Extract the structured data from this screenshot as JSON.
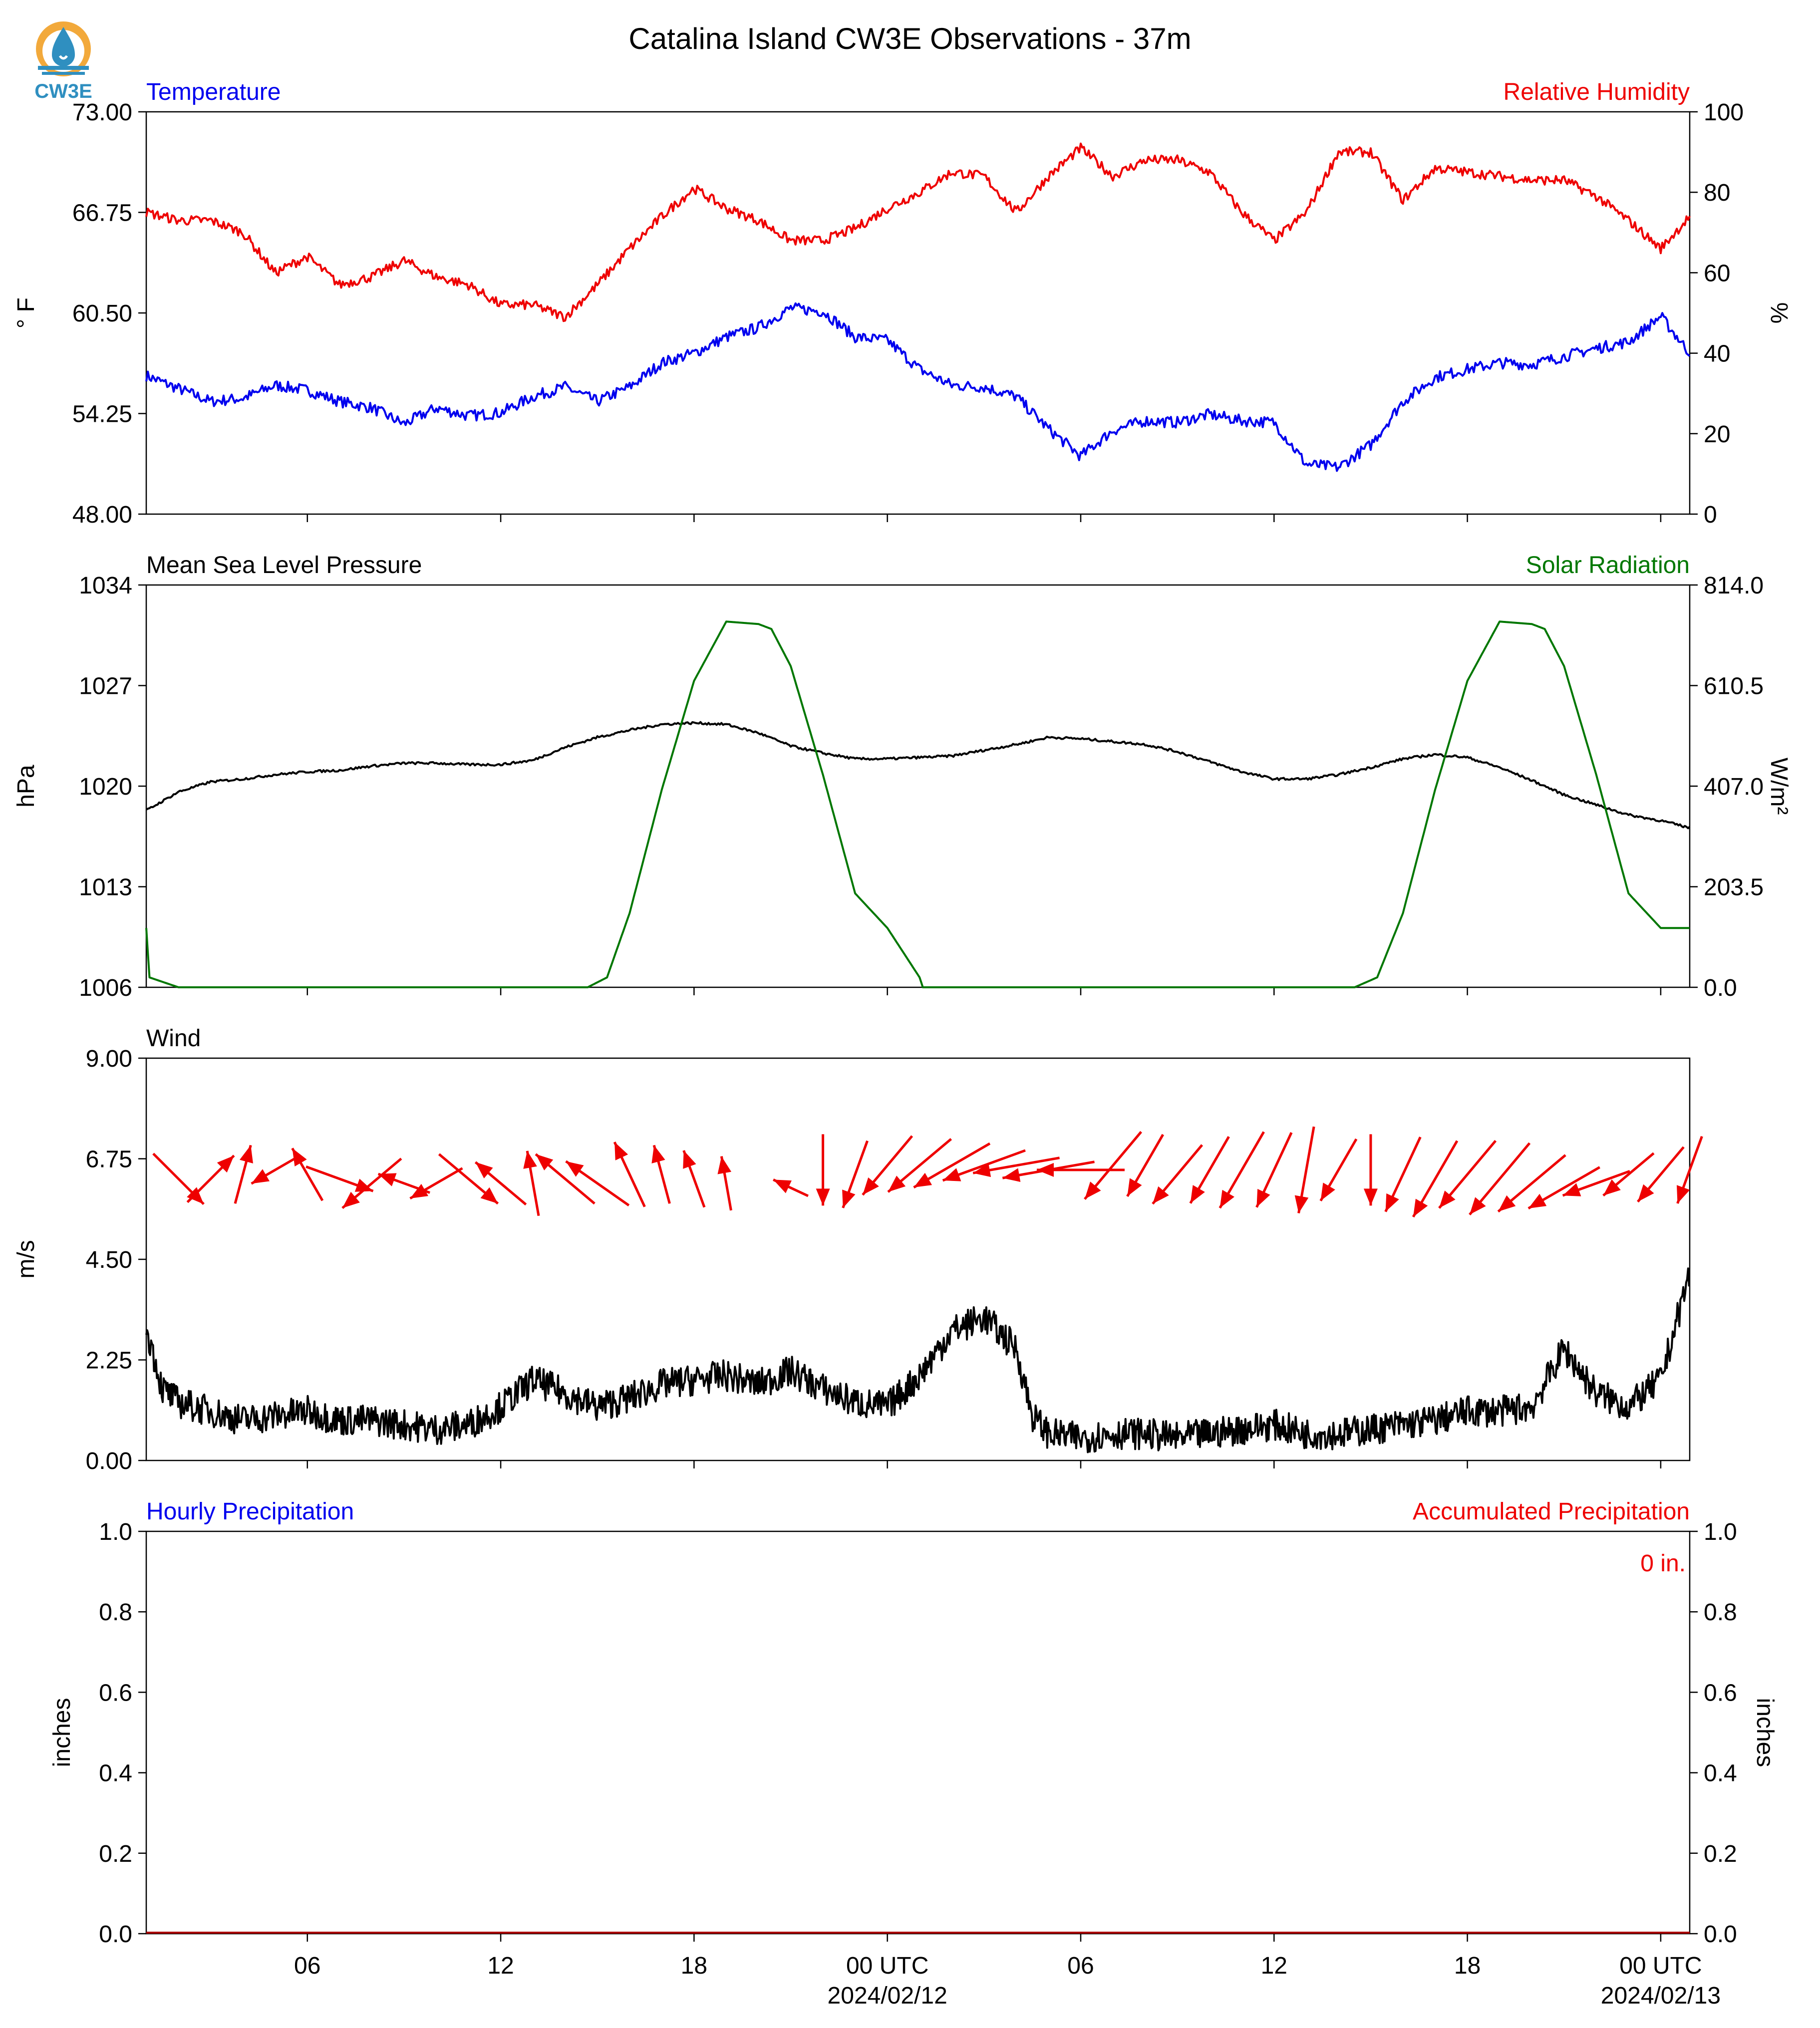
{
  "title": "Catalina Island CW3E Observations - 37m",
  "logo": {
    "text": "CW3E",
    "colors": {
      "ring": "#f2a93b",
      "drop": "#2f8fc0",
      "text": "#2f8fc0"
    }
  },
  "colors": {
    "temperature": "#0000ee",
    "humidity": "#ee0000",
    "pressure": "#000000",
    "solar": "#007700",
    "wind_speed": "#000000",
    "wind_arrows": "#ee0000",
    "hourly_label": "#0000ee",
    "accum_label": "#ee0000"
  },
  "x_axis": {
    "range_hours": [
      -23.0,
      24.9
    ],
    "ticks": [
      {
        "hour": -18,
        "label": "06",
        "sublabel": ""
      },
      {
        "hour": -12,
        "label": "12",
        "sublabel": ""
      },
      {
        "hour": -6,
        "label": "18",
        "sublabel": ""
      },
      {
        "hour": 0,
        "label": "00 UTC",
        "sublabel": "2024/02/12"
      },
      {
        "hour": 6,
        "label": "06",
        "sublabel": ""
      },
      {
        "hour": 12,
        "label": "12",
        "sublabel": ""
      },
      {
        "hour": 18,
        "label": "18",
        "sublabel": ""
      },
      {
        "hour": 24,
        "label": "00 UTC",
        "sublabel": "2024/02/13"
      }
    ]
  },
  "chart_data": [
    {
      "type": "line",
      "left_title": "Temperature",
      "right_title": "Relative Humidity",
      "left_ylabel": "° F",
      "right_ylabel": "%",
      "left_ylim": [
        48.0,
        73.0
      ],
      "right_ylim": [
        0,
        100
      ],
      "left_ticks": [
        "48.00",
        "54.25",
        "60.50",
        "66.75",
        "73.00"
      ],
      "right_ticks": [
        "0",
        "20",
        "40",
        "60",
        "80",
        "100"
      ],
      "series": [
        {
          "key": "temperature",
          "axis": "left",
          "x": [
            -23,
            -22,
            -21,
            -20,
            -19,
            -18,
            -17,
            -16,
            -15,
            -14,
            -13,
            -12,
            -11,
            -10,
            -9,
            -8,
            -7,
            -6,
            -5,
            -4,
            -3,
            -2,
            -1,
            0,
            1,
            2,
            3,
            4,
            5,
            6,
            7,
            8,
            9,
            10,
            11,
            12,
            13,
            14,
            15,
            16,
            17,
            18,
            19,
            20,
            21,
            22,
            23,
            24,
            24.9
          ],
          "y": [
            56.6,
            55.8,
            55.0,
            55.2,
            56.0,
            55.7,
            55.0,
            54.6,
            53.6,
            54.6,
            54.1,
            54.3,
            55.3,
            55.9,
            55.0,
            55.9,
            57.4,
            58.0,
            59.0,
            59.6,
            60.8,
            60.6,
            59.0,
            58.8,
            57.0,
            56.0,
            55.9,
            55.3,
            53.3,
            51.6,
            53.2,
            53.8,
            53.7,
            54.2,
            53.8,
            53.7,
            51.1,
            50.9,
            52.3,
            55.0,
            56.5,
            57.0,
            57.4,
            57.3,
            57.8,
            58.3,
            58.7,
            60.3,
            58.0
          ]
        },
        {
          "key": "humidity",
          "axis": "right",
          "x": [
            -23,
            -22,
            -21,
            -20,
            -19,
            -18,
            -17,
            -16,
            -15,
            -14,
            -13,
            -12,
            -11,
            -10,
            -9,
            -8,
            -7,
            -6,
            -5,
            -4,
            -3,
            -2,
            -1,
            0,
            1,
            2,
            3,
            4,
            5,
            6,
            7,
            8,
            9,
            10,
            11,
            12,
            13,
            14,
            15,
            16,
            17,
            18,
            19,
            20,
            21,
            22,
            23,
            24,
            24.9
          ],
          "y": [
            75,
            73,
            73,
            70,
            60,
            64,
            57,
            59,
            63,
            59,
            57,
            52,
            52,
            49,
            57,
            66,
            74,
            81,
            76,
            73,
            68,
            68,
            71,
            76,
            80,
            85,
            84,
            75,
            84,
            91,
            84,
            88,
            88,
            85,
            75,
            68,
            75,
            90,
            90,
            78,
            86,
            85,
            84,
            83,
            83,
            79,
            73,
            66,
            74
          ]
        }
      ]
    },
    {
      "type": "line",
      "left_title": "Mean Sea Level Pressure",
      "right_title": "Solar Radiation",
      "left_ylabel": "hPa",
      "right_ylabel": "W/m²",
      "left_ylim": [
        1006,
        1034
      ],
      "right_ylim": [
        0.0,
        814.0
      ],
      "left_ticks": [
        "1006",
        "1013",
        "1020",
        "1027",
        "1034"
      ],
      "right_ticks": [
        "0.0",
        "203.5",
        "407.0",
        "610.5",
        "814.0"
      ],
      "series": [
        {
          "key": "pressure",
          "axis": "left",
          "x": [
            -23,
            -22,
            -21,
            -20,
            -19,
            -18,
            -17,
            -16,
            -15,
            -14,
            -13,
            -12,
            -11,
            -10,
            -9,
            -8,
            -7,
            -6,
            -5,
            -4,
            -3,
            -2,
            -1,
            0,
            1,
            2,
            3,
            4,
            5,
            6,
            7,
            8,
            9,
            10,
            11,
            12,
            13,
            14,
            15,
            16,
            17,
            18,
            19,
            20,
            21,
            22,
            23,
            24,
            24.9
          ],
          "y": [
            1018.3,
            1019.6,
            1020.3,
            1020.5,
            1020.8,
            1021.0,
            1021.1,
            1021.4,
            1021.6,
            1021.6,
            1021.5,
            1021.5,
            1021.8,
            1022.7,
            1023.4,
            1023.9,
            1024.3,
            1024.4,
            1024.3,
            1023.7,
            1022.8,
            1022.3,
            1021.9,
            1021.9,
            1022.0,
            1022.1,
            1022.5,
            1022.9,
            1023.4,
            1023.3,
            1023.1,
            1022.9,
            1022.4,
            1021.7,
            1021.0,
            1020.5,
            1020.5,
            1020.8,
            1021.3,
            1021.9,
            1022.2,
            1022.0,
            1021.3,
            1020.4,
            1019.4,
            1018.7,
            1018.0,
            1017.6,
            1017.1
          ]
        },
        {
          "key": "solar",
          "axis": "right",
          "x": [
            -23,
            -22.9,
            -22,
            -20,
            -18,
            -16,
            -14,
            -9.3,
            -8.7,
            -8.0,
            -7.0,
            -6.0,
            -5.0,
            -4.0,
            -3.6,
            -3.0,
            -2.0,
            -1.0,
            0,
            1.0,
            1.1,
            2,
            4,
            6,
            8,
            10,
            12,
            14.5,
            15.2,
            16.0,
            17.0,
            18.0,
            19.0,
            20.0,
            20.4,
            21.0,
            22.0,
            23.0,
            24.0,
            24.9
          ],
          "y": [
            120,
            20,
            0,
            0,
            0,
            0,
            0,
            0,
            20,
            150,
            400,
            620,
            740,
            735,
            725,
            650,
            430,
            190,
            120,
            20,
            0,
            0,
            0,
            0,
            0,
            0,
            0,
            0,
            20,
            150,
            400,
            620,
            740,
            735,
            725,
            650,
            430,
            190,
            120,
            120
          ]
        },
        {
          "key": "wind_speed_placeholder",
          "axis": "none",
          "x": [],
          "y": []
        }
      ]
    },
    {
      "type": "line",
      "left_title": "Wind",
      "left_ylabel": "m/s",
      "left_ylim": [
        0.0,
        9.0
      ],
      "left_ticks": [
        "0.00",
        "2.25",
        "4.50",
        "6.75",
        "9.00"
      ],
      "series": [
        {
          "key": "wind_speed",
          "axis": "left",
          "x": [
            -23,
            -22.5,
            -22,
            -21,
            -20,
            -19,
            -18,
            -17,
            -16,
            -15,
            -14,
            -13,
            -12,
            -11,
            -10,
            -9,
            -8,
            -7,
            -6,
            -5,
            -4,
            -3,
            -2,
            -1,
            0,
            1,
            2,
            3,
            4,
            4.5,
            5,
            6,
            7,
            8,
            9,
            10,
            11,
            12,
            13,
            14,
            15,
            16,
            17,
            18,
            19,
            20,
            21,
            22,
            23,
            24,
            24.9
          ],
          "y": [
            3.0,
            1.6,
            1.3,
            1.1,
            0.9,
            1.0,
            1.1,
            0.9,
            0.9,
            0.8,
            0.7,
            0.8,
            1.2,
            1.8,
            1.5,
            1.2,
            1.4,
            1.7,
            1.8,
            1.9,
            1.7,
            2.0,
            1.6,
            1.3,
            1.2,
            1.9,
            2.9,
            3.2,
            2.5,
            1.0,
            0.6,
            0.5,
            0.6,
            0.6,
            0.5,
            0.6,
            0.7,
            0.8,
            0.6,
            0.6,
            0.7,
            0.8,
            0.9,
            1.1,
            1.1,
            1.2,
            2.5,
            1.5,
            1.2,
            1.8,
            4.2
          ]
        },
        {
          "key": "wind_arrows",
          "axis": "left",
          "x": [
            -22,
            -21,
            -20,
            -19,
            -18,
            -17,
            -16,
            -15,
            -14,
            -13,
            -12,
            -11,
            -10,
            -9,
            -8,
            -7,
            -6,
            -5,
            -3,
            -2,
            -1,
            0,
            1,
            2,
            3,
            4,
            5,
            6,
            7,
            8,
            9,
            10,
            11,
            12,
            13,
            14,
            15,
            16,
            17,
            18,
            19,
            20,
            21,
            22,
            23,
            24,
            24.9
          ],
          "y": [
            6.3,
            6.3,
            6.4,
            6.5,
            6.4,
            6.3,
            6.2,
            6.2,
            6.2,
            6.3,
            6.2,
            6.2,
            6.3,
            6.2,
            6.4,
            6.4,
            6.3,
            6.2,
            6.1,
            6.5,
            6.4,
            6.6,
            6.6,
            6.6,
            6.6,
            6.6,
            6.5,
            6.5,
            6.6,
            6.6,
            6.4,
            6.5,
            6.5,
            6.5,
            6.5,
            6.5,
            6.5,
            6.4,
            6.3,
            6.4,
            6.3,
            6.2,
            6.1,
            6.2,
            6.4,
            6.4,
            6.5
          ],
          "dir": [
            -45,
            45,
            75,
            -150,
            120,
            -20,
            -140,
            -200,
            -150,
            -40,
            -220,
            -260,
            -220,
            -215,
            -245,
            -255,
            -250,
            -260,
            -205,
            -90,
            -110,
            -130,
            -140,
            -150,
            -160,
            -170,
            -170,
            -180,
            -130,
            -120,
            -130,
            -120,
            -120,
            -115,
            -100,
            -120,
            -90,
            -115,
            -120,
            -130,
            -130,
            -140,
            -150,
            -160,
            -140,
            -130,
            -110
          ],
          "len": [
            1.3,
            1.2,
            1.1,
            1.0,
            1.1,
            1.3,
            1.4,
            1.0,
            1.1,
            1.4,
            1.2,
            1.2,
            1.4,
            1.4,
            1.3,
            1.1,
            1.1,
            1.0,
            0.7,
            1.3,
            1.3,
            1.4,
            1.5,
            1.6,
            1.6,
            1.6,
            1.7,
            1.6,
            1.6,
            1.3,
            1.4,
            1.4,
            1.6,
            1.5,
            1.6,
            1.3,
            1.3,
            1.5,
            1.6,
            1.6,
            1.7,
            1.6,
            1.5,
            1.3,
            1.2,
            1.3,
            1.3
          ]
        }
      ]
    },
    {
      "type": "line",
      "left_title": "Hourly Precipitation",
      "right_title": "Accumulated Precipitation",
      "left_ylabel": "inches",
      "right_ylabel": "inches",
      "left_ylim": [
        0.0,
        1.0
      ],
      "right_ylim": [
        0.0,
        1.0
      ],
      "left_ticks": [
        "0.0",
        "0.2",
        "0.4",
        "0.6",
        "0.8",
        "1.0"
      ],
      "right_ticks": [
        "0.0",
        "0.2",
        "0.4",
        "0.6",
        "0.8",
        "1.0"
      ],
      "annotation": "0 in.",
      "series": [
        {
          "key": "accumulated",
          "axis": "right",
          "x": [
            -23,
            24.9
          ],
          "y": [
            0,
            0
          ]
        }
      ]
    }
  ]
}
